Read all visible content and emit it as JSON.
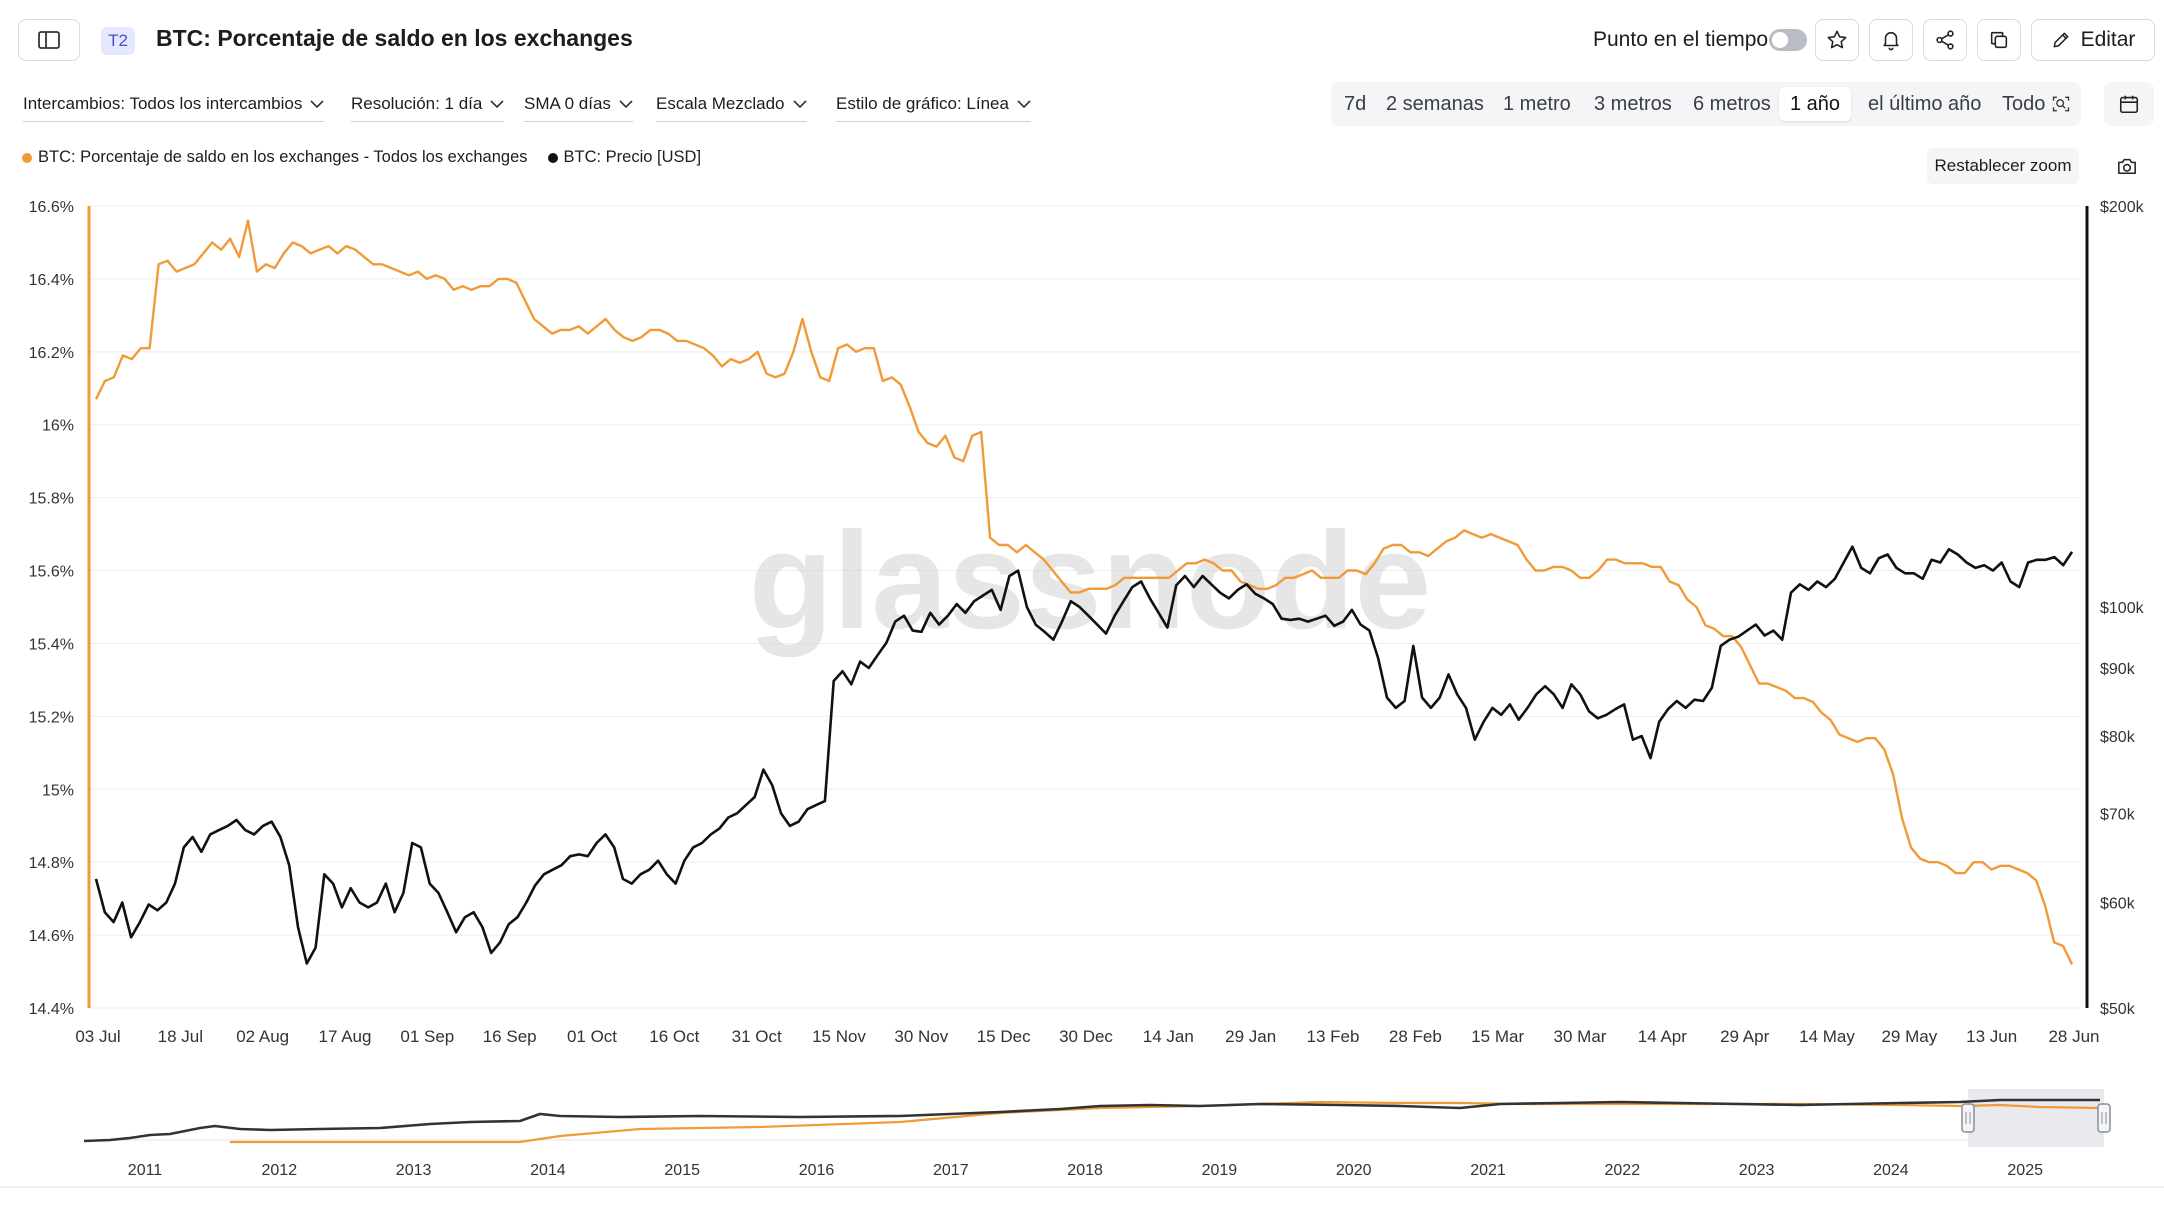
{
  "header": {
    "tier_badge": "T2",
    "title": "BTC: Porcentaje de saldo en los exchanges",
    "point_in_time_label": "Punto en el tiempo",
    "edit_label": "Editar"
  },
  "filters": {
    "exchanges": "Intercambios: Todos los intercambios",
    "resolution": "Resolución: 1 día",
    "sma": "SMA 0 días",
    "scale": "Escala Mezclado",
    "chart_style": "Estilo de gráfico: Línea"
  },
  "ranges": [
    "7d",
    "2 semanas",
    "1 metro",
    "3 metros",
    "6 metros",
    "1 año",
    "el último año",
    "Todo"
  ],
  "active_range": "1 año",
  "reset_zoom_label": "Restablecer zoom",
  "watermark": "glassnode",
  "colors": {
    "orange": "#f09a38",
    "black": "#111111"
  },
  "chart_data": {
    "type": "line",
    "title": "BTC: Porcentaje de saldo en los exchanges",
    "series": [
      {
        "name": "BTC: Porcentaje de saldo en los exchanges - Todos los exchanges",
        "axis": "left",
        "unit": "%",
        "values": [
          16.07,
          16.12,
          16.13,
          16.19,
          16.18,
          16.21,
          16.21,
          16.44,
          16.45,
          16.42,
          16.43,
          16.44,
          16.47,
          16.5,
          16.48,
          16.51,
          16.46,
          16.56,
          16.42,
          16.44,
          16.43,
          16.47,
          16.5,
          16.49,
          16.47,
          16.48,
          16.49,
          16.47,
          16.49,
          16.48,
          16.46,
          16.44,
          16.44,
          16.43,
          16.42,
          16.41,
          16.42,
          16.4,
          16.41,
          16.4,
          16.37,
          16.38,
          16.37,
          16.38,
          16.38,
          16.4,
          16.4,
          16.39,
          16.34,
          16.29,
          16.27,
          16.25,
          16.26,
          16.26,
          16.27,
          16.25,
          16.27,
          16.29,
          16.26,
          16.24,
          16.23,
          16.24,
          16.26,
          16.26,
          16.25,
          16.23,
          16.23,
          16.22,
          16.21,
          16.19,
          16.16,
          16.18,
          16.17,
          16.18,
          16.2,
          16.14,
          16.13,
          16.14,
          16.2,
          16.29,
          16.2,
          16.13,
          16.12,
          16.21,
          16.22,
          16.2,
          16.21,
          16.21,
          16.12,
          16.13,
          16.11,
          16.05,
          15.98,
          15.95,
          15.94,
          15.97,
          15.91,
          15.9,
          15.97,
          15.98,
          15.69,
          15.67,
          15.67,
          15.65,
          15.67,
          15.65,
          15.63,
          15.6,
          15.57,
          15.54,
          15.54,
          15.55,
          15.55,
          15.55,
          15.56,
          15.58,
          15.58,
          15.58,
          15.58,
          15.58,
          15.58,
          15.6,
          15.62,
          15.62,
          15.63,
          15.62,
          15.6,
          15.6,
          15.57,
          15.56,
          15.55,
          15.55,
          15.56,
          15.58,
          15.58,
          15.59,
          15.6,
          15.58,
          15.58,
          15.58,
          15.6,
          15.6,
          15.59,
          15.62,
          15.66,
          15.67,
          15.67,
          15.65,
          15.65,
          15.64,
          15.66,
          15.68,
          15.69,
          15.71,
          15.7,
          15.69,
          15.7,
          15.69,
          15.68,
          15.67,
          15.63,
          15.6,
          15.6,
          15.61,
          15.61,
          15.6,
          15.58,
          15.58,
          15.6,
          15.63,
          15.63,
          15.62,
          15.62,
          15.62,
          15.61,
          15.61,
          15.57,
          15.56,
          15.52,
          15.5,
          15.45,
          15.44,
          15.42,
          15.42,
          15.39,
          15.34,
          15.29,
          15.29,
          15.28,
          15.27,
          15.25,
          15.25,
          15.24,
          15.21,
          15.19,
          15.15,
          15.14,
          15.13,
          15.14,
          15.14,
          15.11,
          15.04,
          14.92,
          14.84,
          14.81,
          14.8,
          14.8,
          14.79,
          14.77,
          14.77,
          14.8,
          14.8,
          14.78,
          14.79,
          14.79,
          14.78,
          14.77,
          14.75,
          14.68,
          14.58,
          14.57,
          14.52
        ]
      },
      {
        "name": "BTC: Precio [USD]",
        "axis": "right",
        "unit": "USD",
        "scale": "log",
        "values": [
          62500,
          59000,
          58000,
          60000,
          56500,
          58000,
          59800,
          59200,
          60000,
          62000,
          66000,
          67200,
          65500,
          67500,
          68000,
          68500,
          69200,
          68000,
          67500,
          68500,
          69000,
          67200,
          64000,
          57500,
          54000,
          55500,
          63000,
          62000,
          59500,
          61500,
          60000,
          59500,
          60000,
          62000,
          59000,
          61000,
          66500,
          66000,
          62000,
          61000,
          59000,
          57000,
          58500,
          59000,
          57500,
          55000,
          56000,
          57800,
          58500,
          60000,
          61800,
          63000,
          63500,
          64000,
          65000,
          65200,
          65000,
          66500,
          67500,
          66000,
          62500,
          62000,
          63000,
          63500,
          64500,
          63000,
          62000,
          64500,
          66000,
          66500,
          67500,
          68200,
          69500,
          70000,
          71000,
          72000,
          75500,
          73500,
          70000,
          68500,
          69000,
          70500,
          71000,
          71500,
          88000,
          89500,
          87500,
          91000,
          90000,
          92000,
          94000,
          97500,
          98500,
          96000,
          95800,
          99000,
          97000,
          98500,
          100500,
          99000,
          101000,
          102000,
          103000,
          99500,
          105500,
          106500,
          100000,
          97000,
          95800,
          94500,
          97500,
          101000,
          100000,
          98500,
          97000,
          95500,
          98500,
          101000,
          103500,
          104500,
          101500,
          99000,
          96500,
          103800,
          105500,
          103500,
          105500,
          104000,
          102500,
          101500,
          103000,
          104000,
          102300,
          101500,
          100500,
          98000,
          97800,
          98000,
          97500,
          98000,
          98500,
          96800,
          97500,
          99500,
          97000,
          96000,
          91500,
          85500,
          84000,
          85000,
          93500,
          85500,
          84000,
          85500,
          89000,
          86000,
          84000,
          79500,
          82000,
          84000,
          83000,
          84500,
          82300,
          84000,
          86000,
          87200,
          86000,
          84000,
          87500,
          86000,
          83500,
          82500,
          83000,
          83800,
          84500,
          79500,
          80000,
          77000,
          82000,
          83800,
          85000,
          84000,
          85200,
          85000,
          87000,
          93500,
          94500,
          95000,
          96000,
          97000,
          95200,
          96000,
          94500,
          102500,
          104000,
          103000,
          104500,
          103500,
          105000,
          108000,
          111000,
          107000,
          106000,
          108800,
          109500,
          107000,
          106000,
          106000,
          105000,
          108500,
          108000,
          110500,
          109500,
          108000,
          107000,
          107500,
          106500,
          108000,
          104500,
          103500,
          108000,
          108500,
          108500,
          109000,
          107500,
          110000
        ]
      }
    ],
    "x_tick_labels": [
      "03 Jul",
      "18 Jul",
      "02 Aug",
      "17 Aug",
      "01 Sep",
      "16 Sep",
      "01 Oct",
      "16 Oct",
      "31 Oct",
      "15 Nov",
      "30 Nov",
      "15 Dec",
      "30 Dec",
      "14 Jan",
      "29 Jan",
      "13 Feb",
      "28 Feb",
      "15 Mar",
      "30 Mar",
      "14 Apr",
      "29 Apr",
      "14 May",
      "29 May",
      "13 Jun",
      "28 Jun"
    ],
    "y_left": {
      "min": 14.4,
      "max": 16.6,
      "ticks": [
        "16.6%",
        "16.4%",
        "16.2%",
        "16%",
        "15.8%",
        "15.6%",
        "15.4%",
        "15.2%",
        "15%",
        "14.8%",
        "14.6%",
        "14.4%"
      ]
    },
    "y_right": {
      "min": 50000,
      "max": 200000,
      "scale": "log",
      "ticks": [
        "$200k",
        "$100k",
        "$90k",
        "$80k",
        "$70k",
        "$60k",
        "$50k"
      ]
    },
    "navigator": {
      "year_labels": [
        "2011",
        "2012",
        "2013",
        "2014",
        "2015",
        "2016",
        "2017",
        "2018",
        "2019",
        "2020",
        "2021",
        "2022",
        "2023",
        "2024",
        "2025"
      ]
    }
  }
}
